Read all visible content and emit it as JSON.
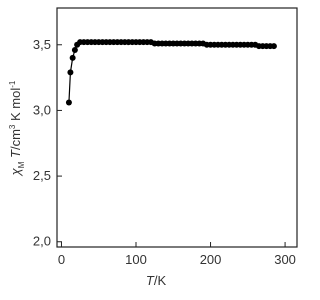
{
  "chart_data": {
    "type": "line",
    "x_label": [
      "T",
      "/K"
    ],
    "y_label": [
      "χ",
      "M",
      " T",
      "/cm",
      "3",
      " K mol",
      "-1"
    ],
    "x": [
      10,
      12,
      15,
      18,
      21,
      25,
      30,
      35,
      40,
      45,
      50,
      55,
      60,
      65,
      70,
      75,
      80,
      85,
      90,
      95,
      100,
      105,
      110,
      115,
      120,
      125,
      130,
      135,
      140,
      145,
      150,
      155,
      160,
      165,
      170,
      175,
      180,
      185,
      190,
      195,
      200,
      205,
      210,
      215,
      220,
      225,
      230,
      235,
      240,
      245,
      250,
      255,
      260,
      265,
      270,
      275,
      280,
      285
    ],
    "series": [
      {
        "color": "#000000",
        "values": [
          3.06,
          3.29,
          3.4,
          3.46,
          3.5,
          3.52,
          3.52,
          3.52,
          3.52,
          3.52,
          3.52,
          3.52,
          3.52,
          3.52,
          3.52,
          3.52,
          3.52,
          3.52,
          3.52,
          3.52,
          3.52,
          3.52,
          3.52,
          3.52,
          3.52,
          3.51,
          3.51,
          3.51,
          3.51,
          3.51,
          3.51,
          3.51,
          3.51,
          3.51,
          3.51,
          3.51,
          3.51,
          3.51,
          3.51,
          3.5,
          3.5,
          3.5,
          3.5,
          3.5,
          3.5,
          3.5,
          3.5,
          3.5,
          3.5,
          3.5,
          3.5,
          3.5,
          3.5,
          3.49,
          3.49,
          3.49,
          3.49,
          3.49
        ]
      }
    ],
    "xlim": [
      -6,
      316
    ],
    "xticks": [
      0,
      100,
      200,
      300
    ],
    "ylim": [
      1.96,
      3.78
    ],
    "yticks": [
      {
        "value": 2.0,
        "label": "2,0"
      },
      {
        "value": 2.5,
        "label": "2,5"
      },
      {
        "value": 3.0,
        "label": "3,0"
      },
      {
        "value": 3.5,
        "label": "3,5"
      }
    ]
  }
}
